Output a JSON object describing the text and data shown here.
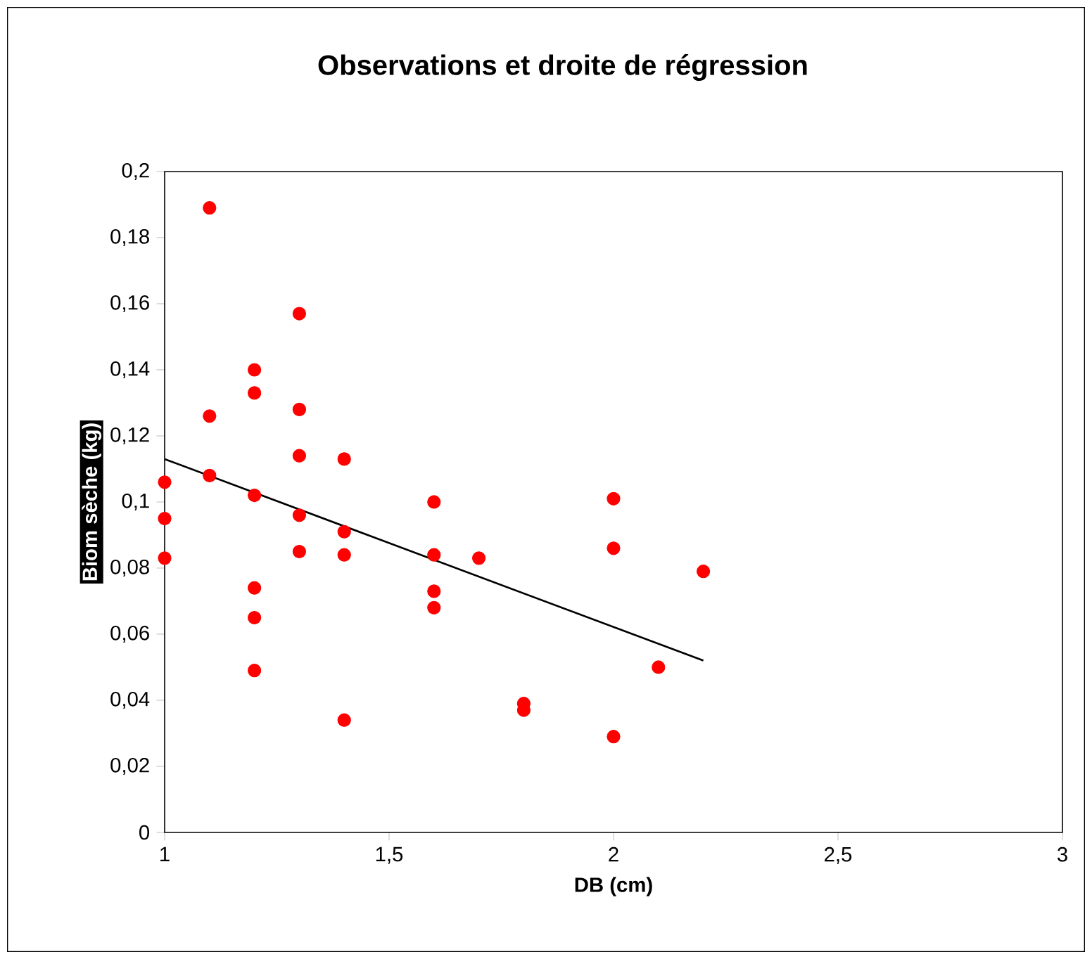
{
  "chart_data": {
    "type": "scatter",
    "title": "Observations et droite de régression",
    "xlabel": "DB (cm)",
    "ylabel": "Biom sèche (kg)",
    "xlim": [
      1,
      3
    ],
    "ylim": [
      0,
      0.2
    ],
    "xticks": [
      1,
      {
        "value": 1.5,
        "label": "1,5"
      },
      2,
      {
        "value": 2.5,
        "label": "2,5"
      },
      3
    ],
    "yticks": [
      0,
      {
        "value": 0.02,
        "label": "0,02"
      },
      {
        "value": 0.04,
        "label": "0,04"
      },
      {
        "value": 0.06,
        "label": "0,06"
      },
      {
        "value": 0.08,
        "label": "0,08"
      },
      {
        "value": 0.1,
        "label": "0,1"
      },
      {
        "value": 0.12,
        "label": "0,12"
      },
      {
        "value": 0.14,
        "label": "0,14"
      },
      {
        "value": 0.16,
        "label": "0,16"
      },
      {
        "value": 0.18,
        "label": "0,18"
      },
      {
        "value": 0.2,
        "label": "0,2"
      }
    ],
    "grid": false,
    "series": [
      {
        "color": "#ff0000",
        "marker": "circle",
        "x": [
          1,
          1,
          1,
          1.1,
          1.1,
          1.1,
          1.2,
          1.2,
          1.2,
          1.2,
          1.2,
          1.2,
          1.3,
          1.3,
          1.3,
          1.3,
          1.3,
          1.4,
          1.4,
          1.4,
          1.4,
          1.6,
          1.6,
          1.6,
          1.6,
          1.7,
          1.8,
          1.8,
          2,
          2,
          2,
          2.1,
          2.2
        ],
        "values": [
          0.106,
          0.095,
          0.083,
          0.189,
          0.126,
          0.108,
          0.14,
          0.133,
          0.102,
          0.074,
          0.065,
          0.049,
          0.157,
          0.128,
          0.114,
          0.096,
          0.085,
          0.113,
          0.091,
          0.084,
          0.034,
          0.1,
          0.084,
          0.073,
          0.068,
          0.083,
          0.039,
          0.037,
          0.101,
          0.086,
          0.029,
          0.05,
          0.079
        ]
      },
      {
        "type": "line",
        "color": "#000000",
        "marker": "none",
        "x": [
          1,
          2.2
        ],
        "values": [
          0.113,
          0.052
        ]
      }
    ]
  }
}
